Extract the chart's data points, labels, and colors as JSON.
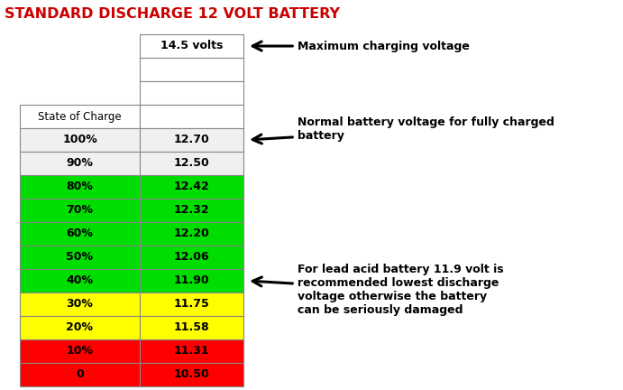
{
  "title": "STANDARD DISCHARGE 12 VOLT BATTERY",
  "title_color": "#cc0000",
  "title_fontsize": 11.5,
  "col1_header": "State of Charge",
  "rows": [
    {
      "label": "100%",
      "value": "12.70",
      "bg": "#f0f0f0",
      "fg": "#000000"
    },
    {
      "label": "90%",
      "value": "12.50",
      "bg": "#f0f0f0",
      "fg": "#000000"
    },
    {
      "label": "80%",
      "value": "12.42",
      "bg": "#00dd00",
      "fg": "#000000"
    },
    {
      "label": "70%",
      "value": "12.32",
      "bg": "#00dd00",
      "fg": "#000000"
    },
    {
      "label": "60%",
      "value": "12.20",
      "bg": "#00dd00",
      "fg": "#000000"
    },
    {
      "label": "50%",
      "value": "12.06",
      "bg": "#00dd00",
      "fg": "#000000"
    },
    {
      "label": "40%",
      "value": "11.90",
      "bg": "#00dd00",
      "fg": "#000000"
    },
    {
      "label": "30%",
      "value": "11.75",
      "bg": "#ffff00",
      "fg": "#000000"
    },
    {
      "label": "20%",
      "value": "11.58",
      "bg": "#ffff00",
      "fg": "#000000"
    },
    {
      "label": "10%",
      "value": "11.31",
      "bg": "#ff0000",
      "fg": "#000000"
    },
    {
      "label": "0",
      "value": "10.50",
      "bg": "#ff0000",
      "fg": "#000000"
    }
  ],
  "ann1_text": "Maximum charging voltage",
  "ann2_text": "Normal battery voltage for fully charged\nbattery",
  "ann3_text": "For lead acid battery 11.9 volt is\nrecommended lowest discharge\nvoltage otherwise the battery\ncan be seriously damaged",
  "fig_w": 6.91,
  "fig_h": 4.32,
  "dpi": 100
}
